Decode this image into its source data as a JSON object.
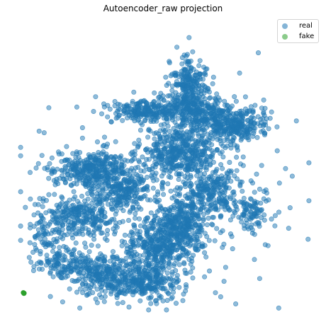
{
  "chart_data": {
    "type": "scatter",
    "title": "Autoencoder_raw projection",
    "xlabel": "",
    "ylabel": "",
    "axes_visible": false,
    "grid": false,
    "legend_placement": "top-right",
    "xlim": [
      0,
      1
    ],
    "ylim": [
      0,
      1
    ],
    "series": [
      {
        "name": "real",
        "color": "#1f77b4",
        "alpha": 0.5,
        "density_regions": [
          {
            "cx": 0.56,
            "cy": 0.56,
            "rx": 0.12,
            "ry": 0.09,
            "weight": 0.1
          },
          {
            "cx": 0.45,
            "cy": 0.71,
            "rx": 0.13,
            "ry": 0.04,
            "weight": 0.06
          },
          {
            "cx": 0.58,
            "cy": 0.79,
            "rx": 0.06,
            "ry": 0.1,
            "weight": 0.06
          },
          {
            "cx": 0.74,
            "cy": 0.66,
            "rx": 0.1,
            "ry": 0.06,
            "weight": 0.07
          },
          {
            "cx": 0.62,
            "cy": 0.7,
            "rx": 0.08,
            "ry": 0.06,
            "weight": 0.05
          },
          {
            "cx": 0.55,
            "cy": 0.31,
            "rx": 0.09,
            "ry": 0.09,
            "weight": 0.08
          },
          {
            "cx": 0.47,
            "cy": 0.22,
            "rx": 0.12,
            "ry": 0.08,
            "weight": 0.08
          },
          {
            "cx": 0.44,
            "cy": 0.1,
            "rx": 0.11,
            "ry": 0.06,
            "weight": 0.06
          },
          {
            "cx": 0.3,
            "cy": 0.12,
            "rx": 0.1,
            "ry": 0.06,
            "weight": 0.05
          },
          {
            "cx": 0.25,
            "cy": 0.5,
            "rx": 0.13,
            "ry": 0.06,
            "weight": 0.08
          },
          {
            "cx": 0.22,
            "cy": 0.34,
            "rx": 0.11,
            "ry": 0.07,
            "weight": 0.06
          },
          {
            "cx": 0.36,
            "cy": 0.43,
            "rx": 0.08,
            "ry": 0.07,
            "weight": 0.05
          },
          {
            "cx": 0.18,
            "cy": 0.17,
            "rx": 0.11,
            "ry": 0.06,
            "weight": 0.04
          },
          {
            "cx": 0.66,
            "cy": 0.42,
            "rx": 0.09,
            "ry": 0.07,
            "weight": 0.05
          },
          {
            "cx": 0.1,
            "cy": 0.27,
            "rx": 0.06,
            "ry": 0.1,
            "weight": 0.02
          },
          {
            "cx": 0.8,
            "cy": 0.35,
            "rx": 0.05,
            "ry": 0.07,
            "weight": 0.02
          },
          {
            "cx": 0.5,
            "cy": 0.42,
            "rx": 0.38,
            "ry": 0.34,
            "weight": 0.07
          }
        ],
        "point_count": 4200
      },
      {
        "name": "fake",
        "color": "#2ca02c",
        "alpha": 0.5,
        "points": [
          {
            "x": 0.02,
            "y": 0.065
          },
          {
            "x": 0.021,
            "y": 0.063
          },
          {
            "x": 0.019,
            "y": 0.066
          },
          {
            "x": 0.022,
            "y": 0.064
          }
        ]
      }
    ]
  }
}
